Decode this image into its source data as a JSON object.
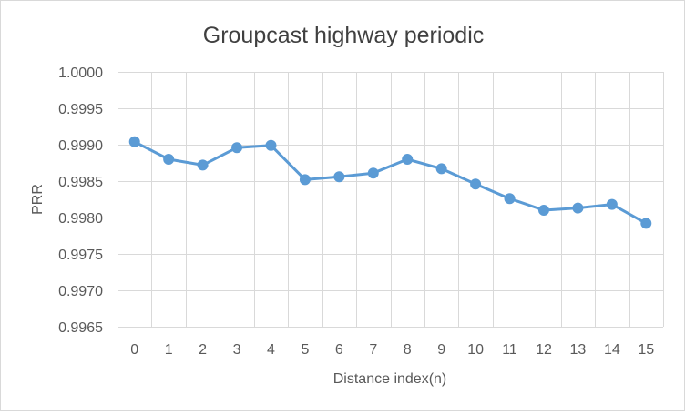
{
  "chart_data": {
    "type": "line",
    "title": "Groupcast highway periodic",
    "xlabel": "Distance index(n)",
    "ylabel": "PRR",
    "x": [
      0,
      1,
      2,
      3,
      4,
      5,
      6,
      7,
      8,
      9,
      10,
      11,
      12,
      13,
      14,
      15
    ],
    "x_tick_labels": [
      "0",
      "1",
      "2",
      "3",
      "4",
      "5",
      "6",
      "7",
      "8",
      "9",
      "10",
      "11",
      "12",
      "13",
      "14",
      "15"
    ],
    "y_tick_labels": [
      "0.9965",
      "0.9970",
      "0.9975",
      "0.9980",
      "0.9985",
      "0.9990",
      "0.9995",
      "1.0000"
    ],
    "ylim": [
      0.9965,
      1.0
    ],
    "ytick_step": 0.0005,
    "grid": true,
    "legend": "none",
    "series": [
      {
        "values": [
          0.99904,
          0.9988,
          0.99872,
          0.99896,
          0.99899,
          0.99852,
          0.99856,
          0.99861,
          0.9988,
          0.99867,
          0.99846,
          0.99826,
          0.9981,
          0.99813,
          0.99818,
          0.99792
        ],
        "color": "#5b9bd5"
      }
    ],
    "colors": {
      "grid": "#d9d9d9",
      "text": "#595959",
      "title": "#404040"
    }
  }
}
